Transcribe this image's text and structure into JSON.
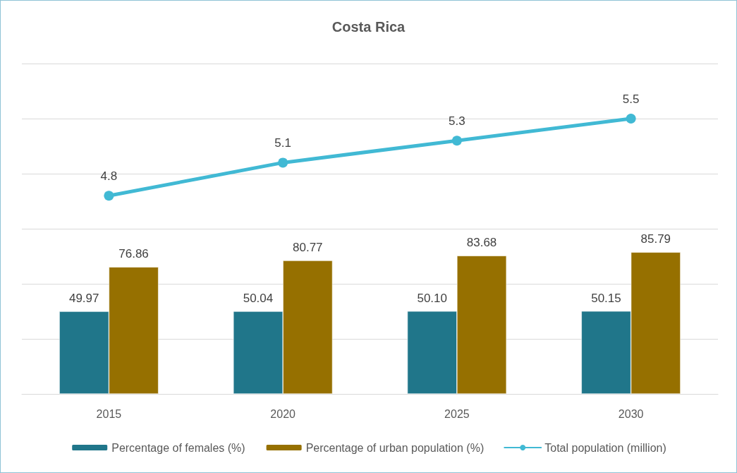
{
  "chart_data": {
    "type": "bar",
    "title": "Costa Rica",
    "categories": [
      "2015",
      "2020",
      "2025",
      "2030"
    ],
    "series": [
      {
        "name": "Percentage of females (%)",
        "color": "#20768a",
        "values": [
          49.97,
          50.04,
          50.1,
          50.15
        ],
        "value_labels": [
          "49.97",
          "50.04",
          "50.10",
          "50.15"
        ]
      },
      {
        "name": "Percentage of urban population (%)",
        "color": "#967000",
        "values": [
          76.86,
          80.77,
          83.68,
          85.79
        ],
        "value_labels": [
          "76.86",
          "80.77",
          "83.68",
          "85.79"
        ]
      },
      {
        "name": "Total population (million)",
        "type": "line",
        "axis": "y2",
        "color": "#41b9d4",
        "values": [
          4.8,
          5.1,
          5.3,
          5.5
        ],
        "value_labels": [
          "4.8",
          "5.1",
          "5.3",
          "5.5"
        ]
      }
    ],
    "ylim": [
      0,
      200
    ],
    "y2lim": [
      3,
      6
    ],
    "y2ticks": [
      {
        "value": 3,
        "label": null
      },
      {
        "value": 3.5,
        "label": null
      },
      {
        "value": 4,
        "label": null
      },
      {
        "value": 4.5,
        "label": null
      },
      {
        "value": 5,
        "label": null
      },
      {
        "value": 5.5,
        "label": null
      },
      {
        "value": 6,
        "label": null
      }
    ],
    "tick_labels": "x",
    "grid": "y",
    "legend": "bottom",
    "marker": "circle"
  }
}
